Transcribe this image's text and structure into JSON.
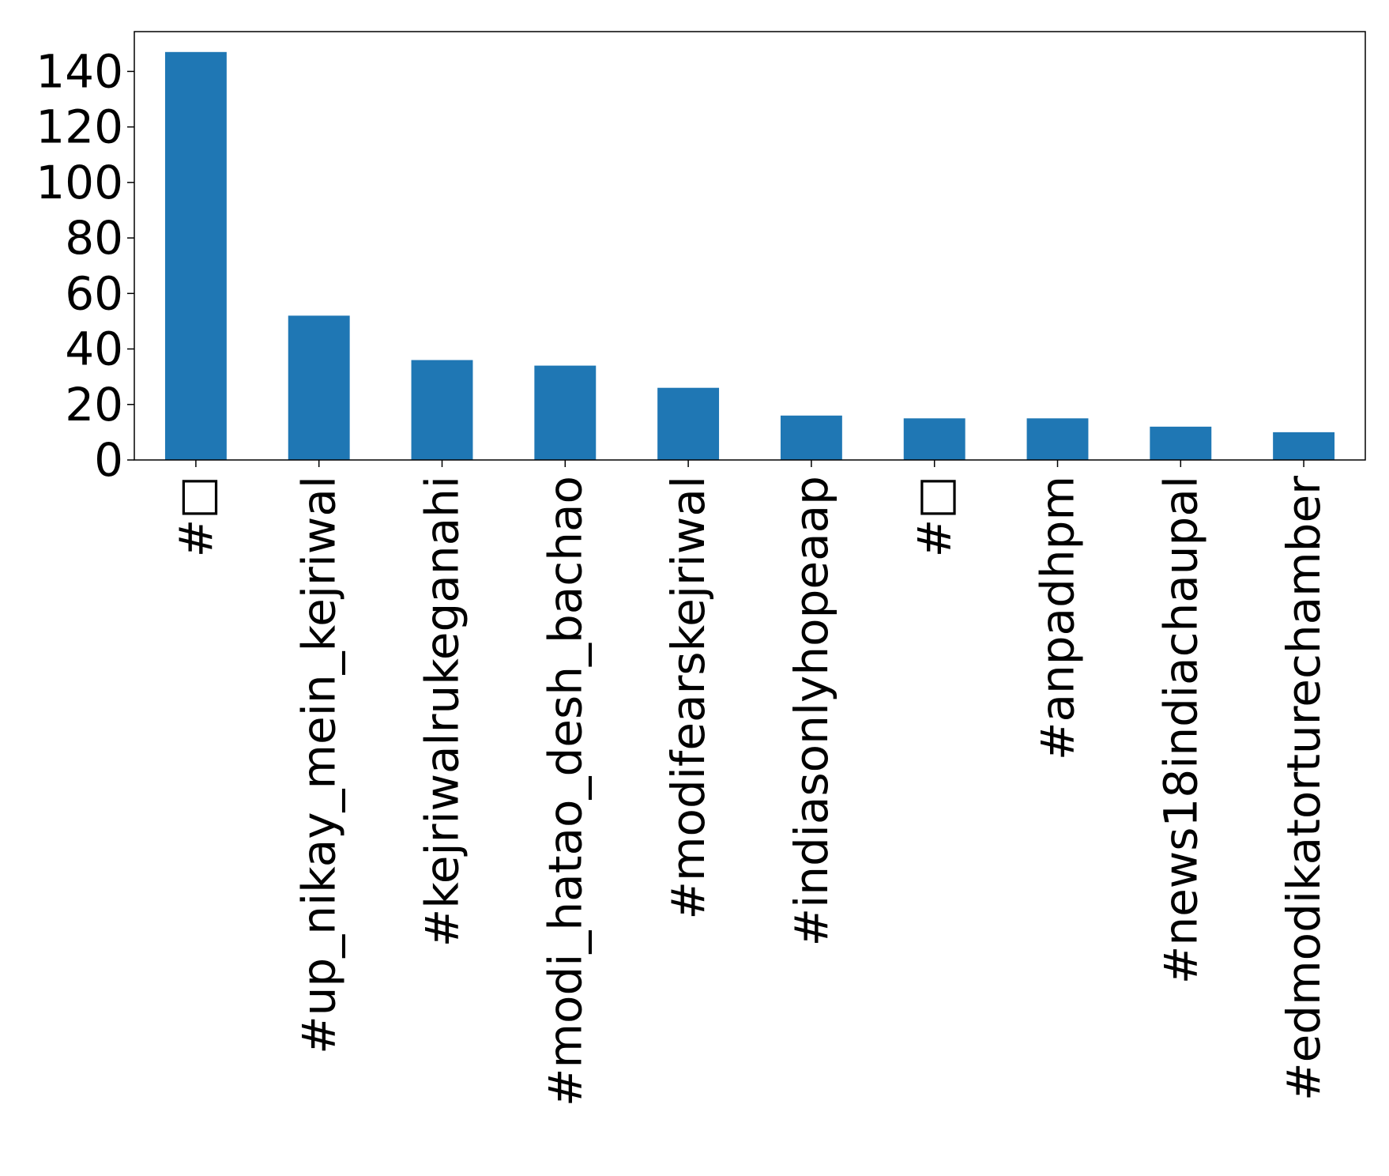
{
  "chart_data": {
    "type": "bar",
    "title": "",
    "xlabel": "",
    "ylabel": "",
    "categories": [
      "#□",
      "#up_nikay_mein_kejriwal",
      "#kejriwalrukeganahi",
      "#modi_hatao_desh_bachao",
      "#modifearskejriwal",
      "#indiasonlyhopeaap",
      "#□",
      "#anpadhpm",
      "#news18indiachaupal",
      "#edmodikatorturechamber"
    ],
    "values": [
      147,
      52,
      36,
      34,
      26,
      16,
      15,
      15,
      12,
      10
    ],
    "ylim": [
      0,
      154.35
    ],
    "yticks": [
      0,
      20,
      40,
      60,
      80,
      100,
      120,
      140
    ],
    "grid": false,
    "legend": "none",
    "bar_color": "#1f77b4"
  }
}
